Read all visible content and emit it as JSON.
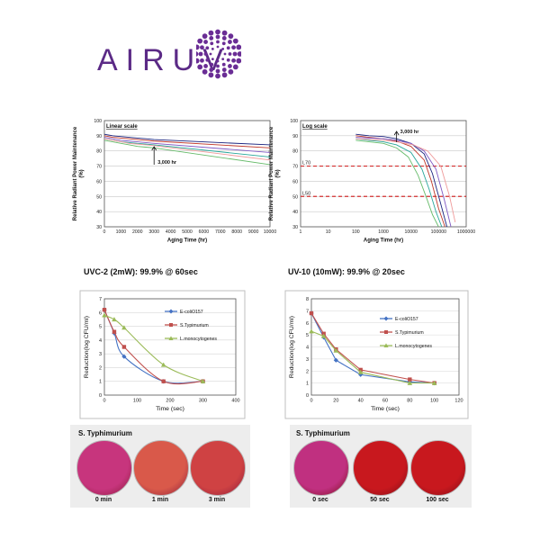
{
  "brand": {
    "name": "AIRUV",
    "color": "#5b2a86"
  },
  "section_headings": {
    "left": "UVC-2 (2mW): 99.9% @ 60sec",
    "right": "UV-10 (10mW): 99.9% @ 20sec"
  },
  "plates": {
    "left": {
      "title": "S. Typhimurium",
      "labels": [
        "0 min",
        "1 min",
        "3 min"
      ],
      "colors": [
        "#c7357d",
        "#d9594a",
        "#cf4243"
      ]
    },
    "right": {
      "title": "S. Typhimurium",
      "labels": [
        "0 sec",
        "50 sec",
        "100 sec"
      ],
      "colors": [
        "#c03080",
        "#c8181e",
        "#c8181e"
      ]
    }
  },
  "chart_data": [
    {
      "id": "linear",
      "type": "line",
      "annotation": "Linear scale",
      "marker_label": "3,000 hr",
      "marker_x": 3000,
      "xlabel": "Aging Time (hr)",
      "ylabel": "Relative Radiant Power Maintenance (%)",
      "xlim": [
        0,
        10000
      ],
      "ylim": [
        30,
        100
      ],
      "xticks": [
        0,
        1000,
        2000,
        3000,
        4000,
        5000,
        6000,
        7000,
        8000,
        9000,
        10000
      ],
      "yticks": [
        30,
        40,
        50,
        60,
        70,
        80,
        90,
        100
      ],
      "series": [
        {
          "color": "#1a237e",
          "x": [
            0,
            500,
            1000,
            1500,
            2000,
            2500,
            3000,
            10000
          ],
          "y": [
            91,
            90,
            89.5,
            89,
            88.5,
            88,
            87.5,
            84
          ]
        },
        {
          "color": "#c0392b",
          "x": [
            0,
            500,
            1000,
            1500,
            2000,
            2500,
            3000,
            10000
          ],
          "y": [
            90,
            89,
            88.5,
            88,
            87.5,
            87,
            86.5,
            82
          ]
        },
        {
          "color": "#7e57c2",
          "x": [
            0,
            500,
            1000,
            1500,
            2000,
            2500,
            3000,
            10000
          ],
          "y": [
            89,
            88,
            87,
            86.5,
            86,
            85.5,
            85,
            79
          ]
        },
        {
          "color": "#26a69a",
          "x": [
            0,
            500,
            1000,
            1500,
            2000,
            2500,
            3000,
            10000
          ],
          "y": [
            88,
            87,
            86,
            85.5,
            85,
            84.5,
            84,
            76
          ]
        },
        {
          "color": "#66bb6a",
          "x": [
            0,
            500,
            1000,
            1500,
            2000,
            2500,
            3000,
            10000
          ],
          "y": [
            87,
            86,
            85,
            84,
            83,
            82.5,
            82,
            71
          ]
        },
        {
          "color": "#ef9a9a",
          "x": [
            0,
            500,
            1000,
            1500,
            2000,
            2500,
            3000,
            10000
          ],
          "y": [
            88,
            87,
            86,
            85,
            84.5,
            84,
            83.5,
            74
          ]
        }
      ]
    },
    {
      "id": "log",
      "type": "line",
      "annotation": "Log scale",
      "marker_label": "3,000 hr",
      "marker_x": 3000,
      "xlabel": "Aging Time (hr)",
      "ylabel": "Relative Radiant Power Maintenance (%)",
      "xscale": "log",
      "xlim": [
        1,
        1000000
      ],
      "ylim": [
        30,
        100
      ],
      "xticks": [
        1,
        10,
        100,
        1000,
        10000,
        100000,
        1000000
      ],
      "xtick_labels": [
        "1",
        "10",
        "100",
        "1000",
        "10000",
        "100000",
        "1000000"
      ],
      "yticks": [
        30,
        40,
        50,
        60,
        70,
        80,
        90,
        100
      ],
      "reference_lines": [
        {
          "y": 70,
          "label": "L70"
        },
        {
          "y": 50,
          "label": "L50"
        }
      ],
      "series": [
        {
          "color": "#1a237e",
          "x": [
            100,
            300,
            1000,
            3000,
            10000,
            30000,
            60000,
            120000,
            200000
          ],
          "y": [
            91,
            90,
            89.5,
            88,
            85,
            78,
            65,
            45,
            30
          ]
        },
        {
          "color": "#c0392b",
          "x": [
            100,
            300,
            1000,
            3000,
            10000,
            30000,
            55000,
            100000,
            170000
          ],
          "y": [
            90,
            89,
            88,
            86.5,
            83,
            74,
            60,
            42,
            30
          ]
        },
        {
          "color": "#7e57c2",
          "x": [
            100,
            300,
            1000,
            3000,
            10000,
            30000,
            80000,
            160000,
            280000
          ],
          "y": [
            89,
            88.5,
            88,
            87,
            85,
            80,
            68,
            48,
            30
          ]
        },
        {
          "color": "#26a69a",
          "x": [
            100,
            300,
            1000,
            3000,
            10000,
            25000,
            45000,
            80000,
            130000
          ],
          "y": [
            88,
            87,
            86,
            84,
            79,
            68,
            55,
            40,
            30
          ]
        },
        {
          "color": "#66bb6a",
          "x": [
            100,
            300,
            1000,
            3000,
            8000,
            18000,
            35000,
            60000,
            100000
          ],
          "y": [
            87,
            86,
            85,
            82,
            76,
            64,
            50,
            38,
            30
          ]
        },
        {
          "color": "#ef9a9a",
          "x": [
            100,
            300,
            1000,
            3000,
            12000,
            40000,
            120000,
            250000,
            400000
          ],
          "y": [
            88,
            87.5,
            87,
            86,
            84,
            80,
            70,
            50,
            33
          ]
        }
      ]
    },
    {
      "id": "uvc2",
      "type": "line",
      "xlabel": "Time (sec)",
      "ylabel": "Reduction(log CFU/ml)",
      "xlim": [
        0,
        400
      ],
      "ylim": [
        0,
        7
      ],
      "xticks": [
        0,
        100,
        200,
        300,
        400
      ],
      "yticks": [
        0,
        1,
        2,
        3,
        4,
        5,
        6,
        7
      ],
      "legend_position": "top-right",
      "series": [
        {
          "name": "E-coliO157",
          "color": "#4472c4",
          "marker": "diamond",
          "x": [
            0,
            30,
            60,
            180,
            300
          ],
          "y": [
            6.2,
            4.5,
            2.8,
            1.0,
            1.0
          ]
        },
        {
          "name": "S.Typimurium",
          "color": "#c0504d",
          "marker": "square",
          "x": [
            0,
            30,
            60,
            180,
            300
          ],
          "y": [
            6.2,
            4.6,
            3.5,
            1.0,
            1.0
          ]
        },
        {
          "name": "L.monocytogenes",
          "color": "#9bbb59",
          "marker": "triangle",
          "x": [
            0,
            30,
            60,
            180,
            300
          ],
          "y": [
            5.8,
            5.5,
            4.9,
            2.2,
            1.0
          ]
        }
      ]
    },
    {
      "id": "uv10",
      "type": "line",
      "xlabel": "Time (sec)",
      "ylabel": "Reduction(log CFU/ml)",
      "xlim": [
        0,
        120
      ],
      "ylim": [
        0,
        8
      ],
      "xticks": [
        0,
        20,
        40,
        60,
        80,
        100,
        120
      ],
      "yticks": [
        0,
        1,
        2,
        3,
        4,
        5,
        6,
        7,
        8
      ],
      "legend_position": "top-right",
      "series": [
        {
          "name": "E-coliO157",
          "color": "#4472c4",
          "marker": "diamond",
          "x": [
            0,
            10,
            20,
            40,
            80,
            100
          ],
          "y": [
            6.8,
            4.8,
            2.9,
            1.7,
            1.1,
            1.0
          ]
        },
        {
          "name": "S.Typimurium",
          "color": "#c0504d",
          "marker": "square",
          "x": [
            0,
            10,
            20,
            40,
            80,
            100
          ],
          "y": [
            6.8,
            5.1,
            3.8,
            2.1,
            1.3,
            1.0
          ]
        },
        {
          "name": "L.monocytogenes",
          "color": "#9bbb59",
          "marker": "triangle",
          "x": [
            0,
            10,
            20,
            40,
            80,
            100
          ],
          "y": [
            5.3,
            4.9,
            3.7,
            1.9,
            1.0,
            1.0
          ]
        }
      ]
    }
  ]
}
